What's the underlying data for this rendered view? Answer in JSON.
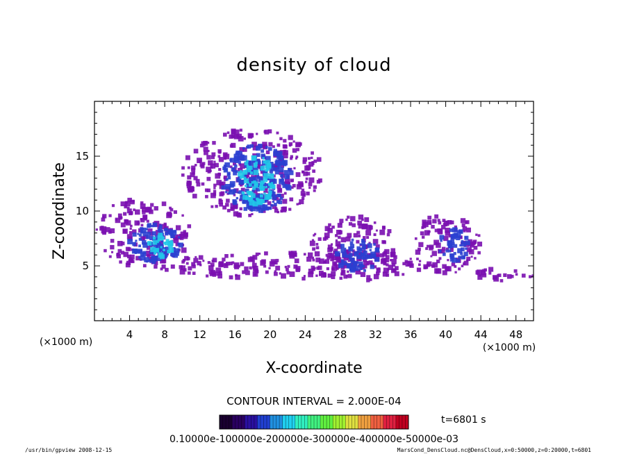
{
  "chart_data": {
    "type": "heatmap",
    "title": "density of cloud",
    "xlabel": "X-coordinate",
    "ylabel": "Z-coordinate",
    "x_unit": "(×1000 m)",
    "y_unit": "(×1000 m)",
    "xlim": [
      0,
      50
    ],
    "ylim": [
      0,
      20
    ],
    "x_ticks": [
      4,
      8,
      12,
      16,
      20,
      24,
      28,
      32,
      36,
      40,
      44,
      48
    ],
    "y_ticks": [
      5,
      10,
      15
    ],
    "grid": false,
    "contour_interval_text": "CONTOUR INTERVAL = 2.000E-04",
    "time_text": "t=6801 s",
    "colorbar": {
      "label_text": "0.10000e-100000e-200000e-300000e-400000e-50000e-03",
      "colors": [
        "#1a0030",
        "#2a0060",
        "#2a10a0",
        "#2040d0",
        "#2090e0",
        "#20d0f0",
        "#30f0c0",
        "#40f080",
        "#60f040",
        "#a0f030",
        "#e0e040",
        "#f0a040",
        "#f06040",
        "#e02040",
        "#c00020"
      ]
    },
    "clouds": [
      {
        "x": 5.5,
        "z": 8.0,
        "rx": 5.5,
        "rz": 3.2,
        "level": 1
      },
      {
        "x": 7.0,
        "z": 7.0,
        "rx": 3.0,
        "rz": 1.8,
        "level": 2
      },
      {
        "x": 7.5,
        "z": 6.8,
        "rx": 1.5,
        "rz": 1.0,
        "level": 3
      },
      {
        "x": 18.0,
        "z": 13.5,
        "rx": 8.0,
        "rz": 4.0,
        "level": 1
      },
      {
        "x": 18.5,
        "z": 13.0,
        "rx": 4.0,
        "rz": 3.0,
        "level": 2
      },
      {
        "x": 18.5,
        "z": 12.8,
        "rx": 2.0,
        "rz": 2.2,
        "level": 3
      },
      {
        "x": 23.0,
        "z": 5.0,
        "rx": 16.0,
        "rz": 1.2,
        "level": 1
      },
      {
        "x": 29.5,
        "z": 6.5,
        "rx": 5.0,
        "rz": 3.0,
        "level": 1
      },
      {
        "x": 30.0,
        "z": 6.0,
        "rx": 2.5,
        "rz": 1.5,
        "level": 2
      },
      {
        "x": 40.0,
        "z": 7.0,
        "rx": 4.0,
        "rz": 2.8,
        "level": 1
      },
      {
        "x": 41.0,
        "z": 6.8,
        "rx": 1.8,
        "rz": 1.5,
        "level": 2
      },
      {
        "x": 47.0,
        "z": 4.2,
        "rx": 4.0,
        "rz": 0.6,
        "level": 1
      }
    ]
  },
  "footer": {
    "left": "/usr/bin/gpview   2008-12-15",
    "right": "MarsCond_DensCloud.nc@DensCloud,x=0:50000,z=0:20000,t=6801"
  }
}
